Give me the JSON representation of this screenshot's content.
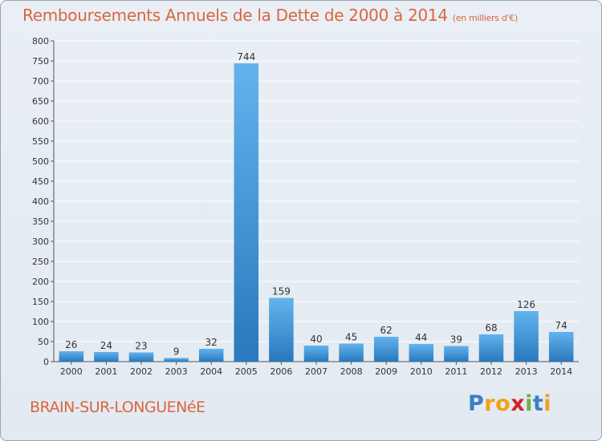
{
  "header": {
    "title": "Remboursements Annuels de la Dette de 2000 à 2014",
    "unit": "(en milliers d'€)"
  },
  "footer": {
    "town": "BRAIN-SUR-LONGUENéE",
    "logo_letters": [
      "P",
      "r",
      "o",
      "x",
      "i",
      "t",
      "i"
    ]
  },
  "colors": {
    "title": "#d9673f",
    "bar_top": "#63b3ee",
    "bar_bottom": "#2a78bd",
    "grid": "#ffffff",
    "logo": [
      "#3b7fc4",
      "#f1a21b",
      "#f1a21b",
      "#d2232a",
      "#6ab04c",
      "#3b7fc4",
      "#f1a21b"
    ]
  },
  "chart_data": {
    "type": "bar",
    "categories": [
      "2000",
      "2001",
      "2002",
      "2003",
      "2004",
      "2005",
      "2006",
      "2007",
      "2008",
      "2009",
      "2010",
      "2011",
      "2012",
      "2013",
      "2014"
    ],
    "values": [
      26,
      24,
      23,
      9,
      32,
      744,
      159,
      40,
      45,
      62,
      44,
      39,
      68,
      126,
      74
    ],
    "ylim": [
      0,
      800
    ],
    "yticks": [
      0,
      50,
      100,
      150,
      200,
      250,
      300,
      350,
      400,
      450,
      500,
      550,
      600,
      650,
      700,
      750,
      800
    ],
    "grid": true,
    "legend": "none"
  }
}
